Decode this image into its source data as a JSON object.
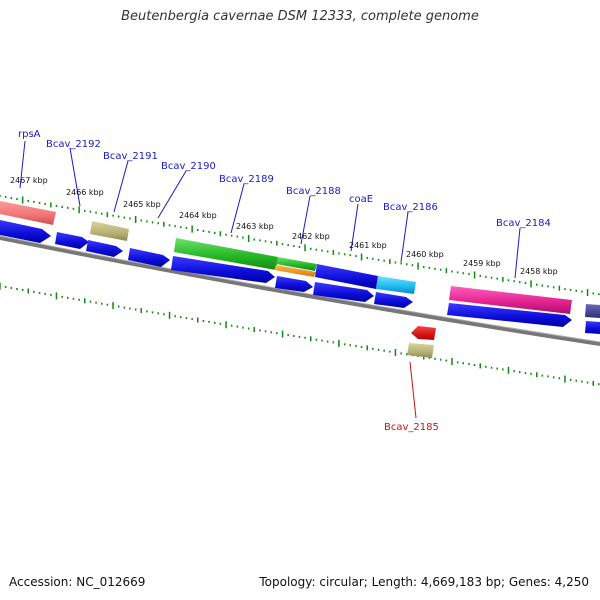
{
  "title": "Beutenbergia cavernae DSM 12333, complete genome",
  "accession": "Accession: NC_012669",
  "summary": "Topology: circular; Length: 4,669,183 bp; Genes: 4,250",
  "kbp_labels": [
    "2467 kbp",
    "2466 kbp",
    "2465 kbp",
    "2464 kbp",
    "2463 kbp",
    "2462 kbp",
    "2461 kbp",
    "2460 kbp",
    "2459 kbp",
    "2458 kbp"
  ],
  "gene_labels": [
    "rpsA",
    "Bcav_2192",
    "Bcav_2191",
    "Bcav_2190",
    "Bcav_2189",
    "Bcav_2188",
    "coaE",
    "Bcav_2186",
    "Bcav_2184",
    "Bcav_2185"
  ],
  "colors": {
    "cds": "#1010e0",
    "tick": "#118811",
    "backbone": "#777777",
    "label_blue": "#1a1ac8",
    "label_red": "#cc1111"
  }
}
